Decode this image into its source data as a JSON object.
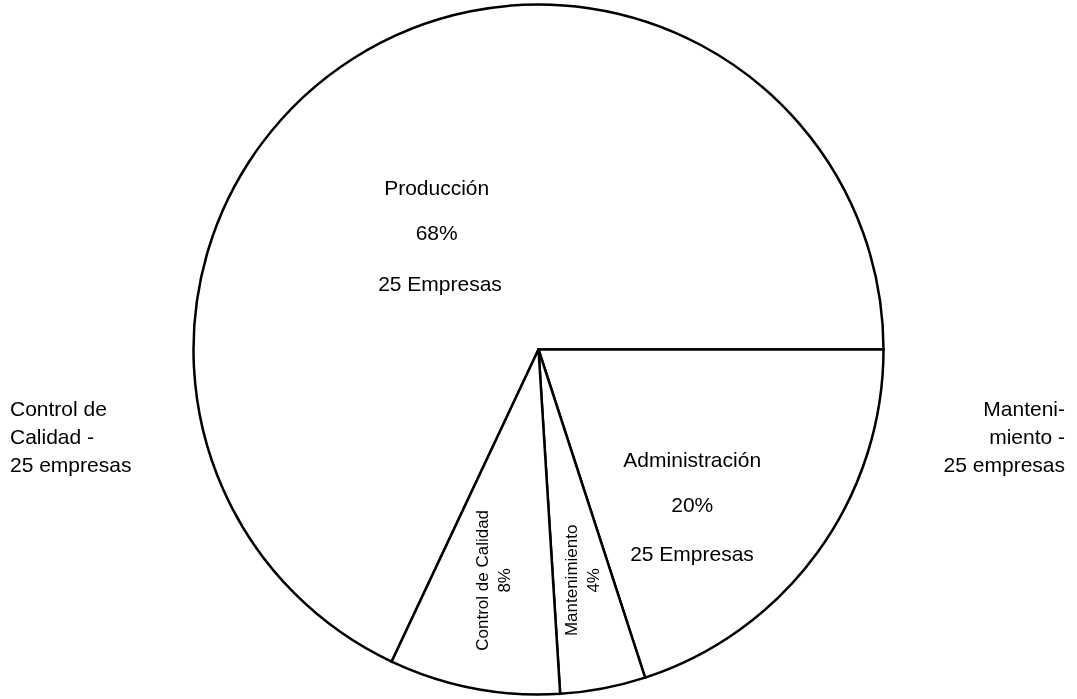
{
  "chart_data": {
    "type": "pie",
    "categories": [
      "Producción",
      "Administración",
      "Mantenimiento",
      "Control de Calidad"
    ],
    "values": [
      68,
      20,
      4,
      8
    ],
    "value_labels": [
      "68%",
      "20%",
      "4%",
      "8%"
    ],
    "colors": [
      "#ffffff",
      "#ffffff",
      "#ffffff",
      "#ffffff"
    ],
    "annotations": [
      "25 Empresas",
      "25 Empresas",
      "Control de\nCalidad -\n25 empresas",
      "Manteni-\nmiento -\n25 empresas"
    ]
  }
}
